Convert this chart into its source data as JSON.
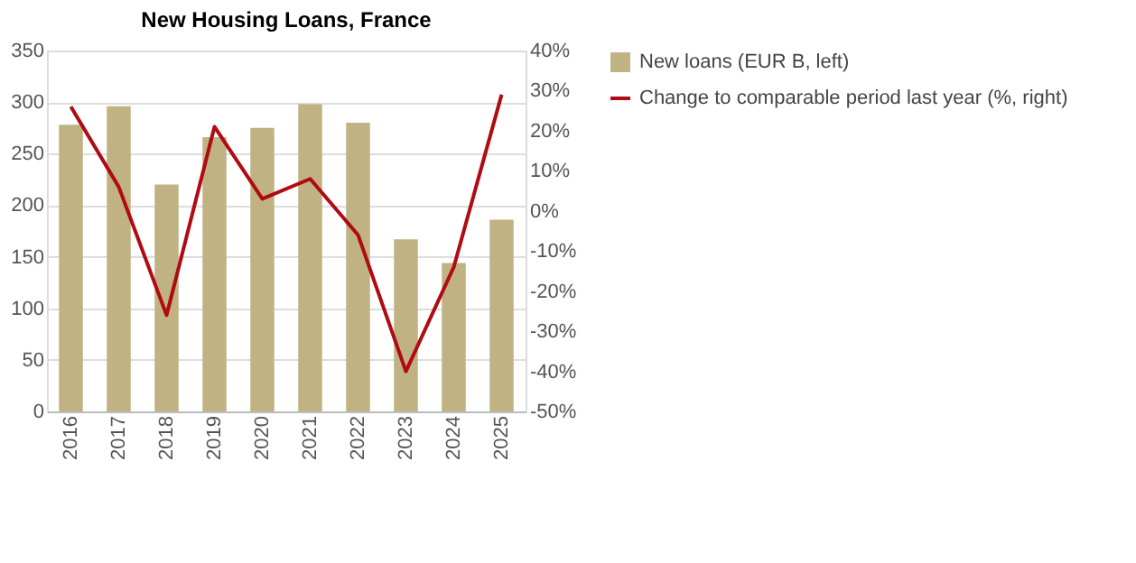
{
  "chart_data": {
    "type": "bar",
    "title": "New Housing Loans, France",
    "categories": [
      "2016",
      "2017",
      "2018",
      "2019",
      "2020",
      "2021",
      "2022",
      "2023",
      "2024",
      "2025"
    ],
    "series": [
      {
        "name": "New loans (EUR B, left)",
        "color": "#c0b283",
        "values": [
          278,
          296,
          220,
          266,
          275,
          298,
          280,
          167,
          144,
          186
        ]
      },
      {
        "name": "Change to comparable period last year (%, right)",
        "type": "line",
        "axis": "y2",
        "color": "#b00a12",
        "values": [
          26,
          6,
          -26,
          21,
          3,
          8,
          -6,
          -40,
          -14,
          29
        ]
      }
    ],
    "ylim": [
      0,
      350
    ],
    "yticks": [
      0,
      50,
      100,
      150,
      200,
      250,
      300,
      350
    ],
    "y2lim": [
      -50,
      40
    ],
    "y2ticks": [
      {
        "value": -50,
        "label": "-50%"
      },
      {
        "value": -40,
        "label": "-40%"
      },
      {
        "value": -30,
        "label": "-30%"
      },
      {
        "value": -20,
        "label": "-20%"
      },
      {
        "value": -10,
        "label": "-10%"
      },
      {
        "value": 0,
        "label": "0%"
      },
      {
        "value": 10,
        "label": "10%"
      },
      {
        "value": 20,
        "label": "20%"
      },
      {
        "value": 30,
        "label": "30%"
      },
      {
        "value": 40,
        "label": "40%"
      }
    ],
    "grid": "y",
    "legend": "right"
  }
}
